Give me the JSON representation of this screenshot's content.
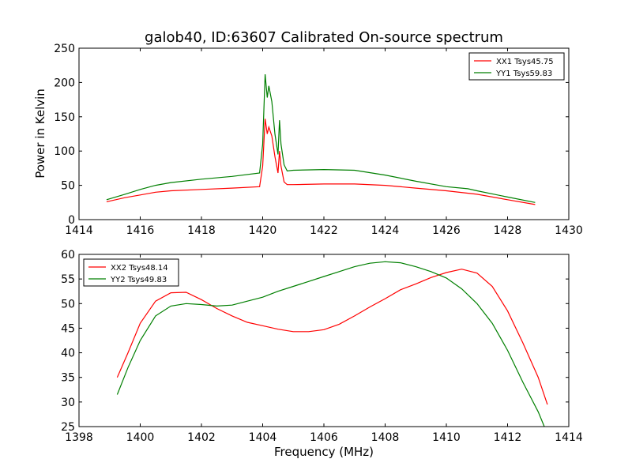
{
  "chart_data": [
    {
      "type": "line",
      "title": "galob40, ID:63607 Calibrated On-source spectrum",
      "xlabel": "",
      "ylabel": "Power in Kelvin",
      "xlim": [
        1414,
        1430
      ],
      "ylim": [
        0,
        250
      ],
      "xticks": [
        "1414",
        "1416",
        "1418",
        "1420",
        "1422",
        "1424",
        "1426",
        "1428",
        "1430"
      ],
      "yticks": [
        "0",
        "50",
        "100",
        "150",
        "200",
        "250"
      ],
      "grid": false,
      "legend_position": "top-right",
      "series": [
        {
          "name": "XX1 Tsys45.75",
          "color": "#ff0000",
          "x": [
            1414.9,
            1415.5,
            1416,
            1416.5,
            1417,
            1418,
            1419,
            1419.9,
            1420.0,
            1420.08,
            1420.15,
            1420.2,
            1420.3,
            1420.4,
            1420.5,
            1420.55,
            1420.6,
            1420.7,
            1420.8,
            1421,
            1422,
            1423,
            1424,
            1425,
            1426,
            1427,
            1428,
            1428.9
          ],
          "y": [
            26,
            32,
            36,
            40,
            42,
            44,
            46,
            48,
            78,
            147,
            125,
            135,
            122,
            92,
            68,
            100,
            78,
            55,
            51,
            51,
            52,
            52,
            50,
            46,
            42,
            37,
            29,
            22
          ]
        },
        {
          "name": "YY1 Tsys59.83",
          "color": "#007f00",
          "x": [
            1414.9,
            1415.5,
            1416,
            1416.5,
            1417,
            1418,
            1419,
            1419.9,
            1420.0,
            1420.08,
            1420.15,
            1420.2,
            1420.3,
            1420.4,
            1420.5,
            1420.55,
            1420.6,
            1420.7,
            1420.8,
            1421,
            1422,
            1423,
            1424,
            1425,
            1426,
            1426.7,
            1427,
            1428,
            1428.9
          ],
          "y": [
            29,
            37,
            44,
            50,
            54,
            59,
            63,
            68,
            110,
            212,
            178,
            195,
            172,
            125,
            95,
            145,
            110,
            80,
            71,
            72,
            73,
            72,
            65,
            56,
            48,
            45,
            42,
            33,
            25
          ]
        }
      ]
    },
    {
      "type": "line",
      "title": "",
      "xlabel": "Frequency (MHz)",
      "ylabel": "",
      "xlim": [
        1398,
        1414
      ],
      "ylim": [
        25,
        60
      ],
      "xticks": [
        "1398",
        "1400",
        "1402",
        "1404",
        "1406",
        "1408",
        "1410",
        "1412",
        "1414"
      ],
      "yticks": [
        "25",
        "30",
        "35",
        "40",
        "45",
        "50",
        "55",
        "60"
      ],
      "grid": false,
      "legend_position": "top-left",
      "series": [
        {
          "name": "XX2 Tsys48.14",
          "color": "#ff0000",
          "x": [
            1399.25,
            1399.6,
            1400.0,
            1400.5,
            1401.0,
            1401.5,
            1402.0,
            1402.5,
            1403.0,
            1403.5,
            1404.0,
            1404.5,
            1405.0,
            1405.5,
            1406.0,
            1406.5,
            1407.0,
            1407.5,
            1408.0,
            1408.5,
            1409.0,
            1409.5,
            1410.0,
            1410.5,
            1411.0,
            1411.5,
            1412.0,
            1412.5,
            1413.0,
            1413.3
          ],
          "y": [
            35.0,
            40.0,
            46.0,
            50.5,
            52.2,
            52.3,
            50.8,
            49.0,
            47.5,
            46.2,
            45.5,
            44.8,
            44.3,
            44.3,
            44.7,
            45.8,
            47.5,
            49.3,
            51.0,
            52.8,
            54.0,
            55.3,
            56.3,
            57.0,
            56.2,
            53.5,
            48.5,
            42.0,
            35.0,
            29.5
          ]
        },
        {
          "name": "YY2 Tsys49.83",
          "color": "#007f00",
          "x": [
            1399.25,
            1399.6,
            1400.0,
            1400.5,
            1401.0,
            1401.5,
            1402.0,
            1402.5,
            1403.0,
            1403.5,
            1404.0,
            1404.5,
            1405.0,
            1405.5,
            1406.0,
            1406.5,
            1407.0,
            1407.5,
            1408.0,
            1408.5,
            1409.0,
            1409.5,
            1410.0,
            1410.5,
            1411.0,
            1411.5,
            1412.0,
            1412.5,
            1413.0,
            1413.2
          ],
          "y": [
            31.5,
            37.0,
            42.5,
            47.5,
            49.5,
            50.0,
            49.8,
            49.5,
            49.7,
            50.5,
            51.3,
            52.5,
            53.5,
            54.5,
            55.5,
            56.5,
            57.5,
            58.2,
            58.5,
            58.3,
            57.5,
            56.5,
            55.2,
            53.0,
            50.0,
            46.0,
            40.5,
            34.0,
            28.0,
            25.0
          ]
        }
      ]
    }
  ]
}
